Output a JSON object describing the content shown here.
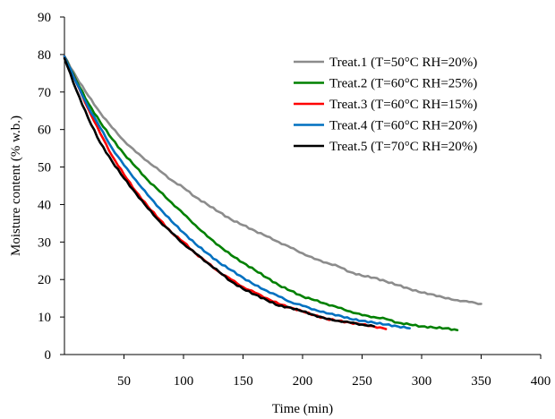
{
  "chart_data": {
    "type": "line",
    "xlabel": "Time (min)",
    "ylabel": "Moisture content (% w.b.)",
    "xlim": [
      0,
      400
    ],
    "ylim": [
      0,
      90
    ],
    "xticks": [
      50,
      100,
      150,
      200,
      250,
      300,
      350,
      400
    ],
    "yticks": [
      0,
      10,
      20,
      30,
      40,
      50,
      60,
      70,
      80,
      90
    ],
    "grid": false,
    "legend_position": "top-right",
    "series": [
      {
        "name": "Treat.1 (T=50°C RH=20%)",
        "color": "#8c8c8c",
        "x": [
          0,
          10,
          20,
          30,
          40,
          50,
          60,
          70,
          80,
          90,
          100,
          110,
          120,
          130,
          140,
          150,
          160,
          170,
          180,
          190,
          200,
          210,
          220,
          230,
          240,
          250,
          260,
          270,
          280,
          290,
          300,
          310,
          320,
          330,
          340,
          350
        ],
        "y": [
          79.5,
          74,
          69,
          64.5,
          60.5,
          57,
          54,
          51.5,
          49,
          46.5,
          44.5,
          42,
          40,
          38,
          36,
          34.5,
          33,
          31.5,
          30,
          28.5,
          27,
          25.5,
          24.5,
          23.5,
          22,
          21,
          20.5,
          19.5,
          18.5,
          17.5,
          16.5,
          16,
          15,
          14.5,
          14,
          13.5
        ]
      },
      {
        "name": "Treat.2 (T=60°C RH=25%)",
        "color": "#008000",
        "x": [
          0,
          10,
          20,
          30,
          40,
          50,
          60,
          70,
          80,
          90,
          100,
          110,
          120,
          130,
          140,
          150,
          160,
          170,
          180,
          190,
          200,
          210,
          220,
          230,
          240,
          250,
          260,
          270,
          280,
          290,
          300,
          310,
          320,
          330
        ],
        "y": [
          79.5,
          73,
          67,
          62,
          57.5,
          53.5,
          50,
          46.5,
          43.5,
          40.5,
          37.5,
          34.5,
          31.5,
          29,
          26.5,
          24.5,
          22.5,
          20.5,
          18.5,
          17,
          15.5,
          14.5,
          13.5,
          12.5,
          11.5,
          10.5,
          10,
          9.5,
          8.5,
          8,
          7.5,
          7.2,
          7,
          6.5
        ]
      },
      {
        "name": "Treat.3 (T=60°C RH=15%)",
        "color": "#ff0000",
        "x": [
          0,
          10,
          20,
          30,
          40,
          50,
          60,
          70,
          80,
          90,
          100,
          110,
          120,
          130,
          140,
          150,
          160,
          170,
          180,
          190,
          200,
          210,
          220,
          230,
          240,
          250,
          260,
          270
        ],
        "y": [
          79.5,
          72.5,
          65.5,
          59,
          53,
          48,
          43.5,
          39.5,
          36,
          32.5,
          30,
          27,
          24.5,
          22,
          20,
          18,
          16.5,
          15,
          13.5,
          12.5,
          11.5,
          10.5,
          9.5,
          9,
          8.5,
          8,
          7.5,
          6.8
        ]
      },
      {
        "name": "Treat.4 (T=60°C RH=20%)",
        "color": "#0070c0",
        "x": [
          0,
          10,
          20,
          30,
          40,
          50,
          60,
          70,
          80,
          90,
          100,
          110,
          120,
          130,
          140,
          150,
          160,
          170,
          180,
          190,
          200,
          210,
          220,
          230,
          240,
          250,
          260,
          270,
          280,
          290
        ],
        "y": [
          79.5,
          72.5,
          66,
          60.5,
          55,
          50.5,
          46.5,
          42.5,
          39,
          35.5,
          32.5,
          29.5,
          27,
          24.5,
          22.5,
          20.5,
          18.5,
          17,
          15.5,
          14,
          13,
          12,
          11,
          10.5,
          9.5,
          9,
          8.5,
          8,
          7.5,
          7
        ]
      },
      {
        "name": "Treat.5 (T=70°C RH=20%)",
        "color": "#000000",
        "x": [
          0,
          10,
          20,
          30,
          40,
          50,
          60,
          70,
          80,
          90,
          100,
          110,
          120,
          130,
          140,
          150,
          160,
          170,
          180,
          190,
          200,
          210,
          220,
          230,
          240,
          250,
          260
        ],
        "y": [
          79,
          70.5,
          63,
          56.5,
          51.5,
          47,
          43,
          39,
          35.5,
          32.5,
          29.5,
          27,
          24.5,
          22,
          19.5,
          17.5,
          16,
          14.5,
          13,
          12.5,
          11.5,
          10.5,
          9.5,
          9,
          8.5,
          8,
          7.5
        ]
      }
    ]
  }
}
